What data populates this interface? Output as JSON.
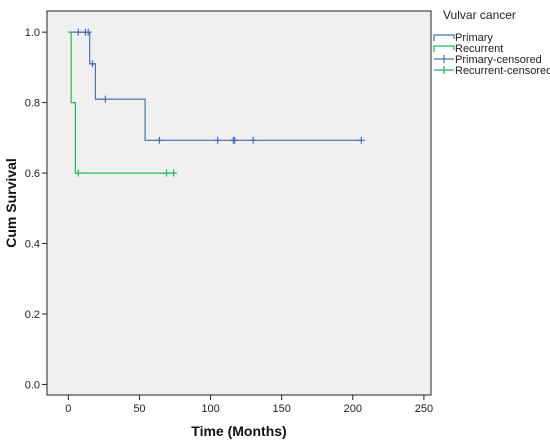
{
  "chart_data": {
    "type": "line",
    "subtype": "kaplan-meier",
    "xlabel": "Time (Months)",
    "ylabel": "Cum Survival",
    "xlim": [
      -15,
      255
    ],
    "ylim": [
      -0.03,
      1.06
    ],
    "xticks": [
      0,
      50,
      100,
      150,
      200,
      250
    ],
    "yticks": [
      0.0,
      0.2,
      0.4,
      0.6,
      0.8,
      1.0
    ],
    "xtick_labels": [
      "0",
      "50",
      "100",
      "150",
      "200",
      "250"
    ],
    "ytick_labels": [
      "0.0",
      "0.2",
      "0.4",
      "0.6",
      "0.8",
      "1.0"
    ],
    "grid": false,
    "plot_background": "#f0f0f0",
    "legend": {
      "title": "Vulvar cancer",
      "position": "right-outside-top",
      "entries": [
        "Primary",
        "Recurrent",
        "Primary-censored",
        "Recurrent-censored"
      ]
    },
    "series": [
      {
        "name": "Primary",
        "color": "#4a6fb5",
        "steps": [
          [
            0,
            1.0
          ],
          [
            15,
            1.0
          ],
          [
            15,
            0.91
          ],
          [
            19,
            0.91
          ],
          [
            19,
            0.81
          ],
          [
            54,
            0.81
          ],
          [
            54,
            0.693
          ],
          [
            206,
            0.693
          ]
        ],
        "censored": [
          [
            7,
            1.0
          ],
          [
            12,
            1.0
          ],
          [
            14,
            1.0
          ],
          [
            17,
            0.91
          ],
          [
            26,
            0.81
          ],
          [
            64,
            0.693
          ],
          [
            105,
            0.693
          ],
          [
            116,
            0.693
          ],
          [
            117,
            0.693
          ],
          [
            130,
            0.693
          ],
          [
            206,
            0.693
          ]
        ]
      },
      {
        "name": "Recurrent",
        "color": "#22bb55",
        "steps": [
          [
            0,
            1.0
          ],
          [
            2,
            1.0
          ],
          [
            2,
            0.8
          ],
          [
            5,
            0.8
          ],
          [
            5,
            0.6
          ],
          [
            74,
            0.6
          ]
        ],
        "censored": [
          [
            7,
            0.6
          ],
          [
            69,
            0.6
          ],
          [
            74,
            0.6
          ]
        ]
      }
    ]
  }
}
